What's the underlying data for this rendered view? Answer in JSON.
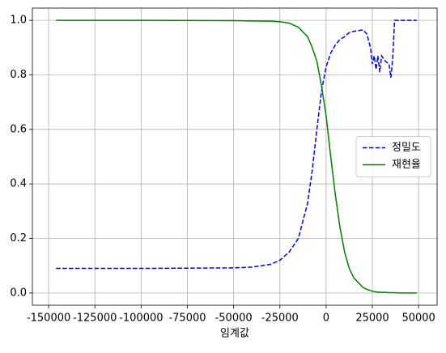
{
  "chart_data": {
    "type": "line",
    "xlabel": "임계값",
    "x": [
      -146000,
      -100000,
      -50000,
      -40000,
      -30000,
      -25000,
      -20000,
      -15000,
      -10000,
      -7500,
      -5000,
      -2500,
      0,
      2500,
      5000,
      7500,
      10000,
      12500,
      15000,
      20000,
      22000,
      24000,
      25000,
      26000,
      27000,
      28000,
      29000,
      30000,
      32000,
      34000,
      35000,
      36000,
      37000,
      40000,
      49000
    ],
    "series": [
      {
        "name": "정밀도",
        "color": "#0000ff",
        "dash": true,
        "values": [
          0.09,
          0.09,
          0.092,
          0.095,
          0.105,
          0.12,
          0.15,
          0.2,
          0.33,
          0.45,
          0.6,
          0.74,
          0.83,
          0.88,
          0.91,
          0.93,
          0.94,
          0.955,
          0.96,
          0.965,
          0.95,
          0.9,
          0.84,
          0.87,
          0.82,
          0.87,
          0.81,
          0.87,
          0.85,
          0.84,
          0.79,
          0.86,
          1.0,
          1.0,
          1.0
        ]
      },
      {
        "name": "재현율",
        "color": "#008000",
        "dash": false,
        "values": [
          1,
          1,
          0.999,
          0.998,
          0.997,
          0.995,
          0.99,
          0.975,
          0.94,
          0.9,
          0.85,
          0.76,
          0.65,
          0.5,
          0.36,
          0.24,
          0.15,
          0.09,
          0.055,
          0.02,
          0.013,
          0.009,
          0.007,
          0.005,
          0.004,
          0.003,
          0.003,
          0.002,
          0.002,
          0.001,
          0.001,
          0.001,
          0.001,
          0,
          0
        ]
      }
    ],
    "xlim": [
      -158800,
      60000
    ],
    "xticks": [
      -150000,
      -125000,
      -100000,
      -75000,
      -50000,
      -25000,
      0,
      25000,
      50000
    ],
    "ylim": [
      -0.045,
      1.045
    ],
    "yticks": [
      {
        "value": 0,
        "label": "0.0"
      },
      0.2,
      0.4,
      0.6,
      0.8,
      {
        "value": 1,
        "label": "1.0"
      }
    ],
    "grid": true,
    "legend": "center right"
  }
}
